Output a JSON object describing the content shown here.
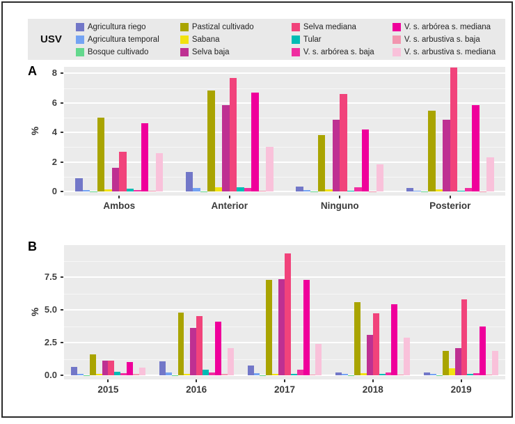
{
  "figure": {
    "panel_a_label": "A",
    "panel_b_label": "B",
    "y_axis_label": "%"
  },
  "legend": {
    "title": "USV",
    "background": "#e9e9e9",
    "columns": 4,
    "rows": 3,
    "order": "column-major"
  },
  "chart_data": [
    {
      "panel": "A",
      "type": "bar",
      "title": "",
      "xlabel": "",
      "ylabel": "%",
      "grid": true,
      "legend_position": "top",
      "categories": [
        "Ambos",
        "Anterior",
        "Ninguno",
        "Posterior"
      ],
      "y_ticks": [
        0,
        2,
        4,
        6,
        8
      ],
      "y_tick_labels": [
        "0",
        "2",
        "4",
        "6",
        "8"
      ],
      "y_minor_ticks": [
        1,
        3,
        5,
        7
      ],
      "ylim": [
        0,
        8.5
      ],
      "series": [
        {
          "name": "Agricultura riego",
          "color": "#7277C8",
          "values": [
            0.9,
            1.3,
            0.35,
            0.25
          ]
        },
        {
          "name": "Agricultura temporal",
          "color": "#74A3F3",
          "values": [
            0.1,
            0.25,
            0.1,
            0.05
          ]
        },
        {
          "name": "Bosque cultivado",
          "color": "#63D88D",
          "values": [
            0.02,
            0.02,
            0.02,
            0.02
          ]
        },
        {
          "name": "Pastizal cultivado",
          "color": "#A9A400",
          "values": [
            5.0,
            6.85,
            3.8,
            5.45
          ]
        },
        {
          "name": "Sabana",
          "color": "#F2E211",
          "values": [
            0.15,
            0.3,
            0.15,
            0.15
          ]
        },
        {
          "name": "Selva baja",
          "color": "#BE3092",
          "values": [
            1.6,
            5.85,
            4.85,
            4.85
          ]
        },
        {
          "name": "Selva mediana",
          "color": "#F1437B",
          "values": [
            2.7,
            7.7,
            6.6,
            8.4
          ]
        },
        {
          "name": "Tular",
          "color": "#00BCB4",
          "values": [
            0.2,
            0.3,
            0.05,
            0.05
          ]
        },
        {
          "name": "V. s. arbórea s. baja",
          "color": "#F02DA0",
          "values": [
            0.1,
            0.25,
            0.3,
            0.25
          ]
        },
        {
          "name": "V. s. arbórea s. mediana",
          "color": "#EF009B",
          "values": [
            4.6,
            6.7,
            4.2,
            5.85
          ]
        },
        {
          "name": "V. s. arbustiva s. baja",
          "color": "#F295AF",
          "values": [
            0.05,
            0.07,
            0.02,
            0.02
          ]
        },
        {
          "name": "V. s. arbustiva s. mediana",
          "color": "#F9C1DA",
          "values": [
            2.6,
            3.0,
            1.85,
            2.3
          ]
        }
      ]
    },
    {
      "panel": "B",
      "type": "bar",
      "title": "",
      "xlabel": "",
      "ylabel": "%",
      "grid": true,
      "legend_position": "top",
      "categories": [
        "2015",
        "2016",
        "2017",
        "2018",
        "2019"
      ],
      "y_ticks": [
        0,
        2.5,
        5,
        7.5
      ],
      "y_tick_labels": [
        "0.0",
        "2.5",
        "5.0",
        "7.5"
      ],
      "y_minor_ticks": [
        1.25,
        3.75,
        6.25,
        8.75
      ],
      "ylim": [
        0,
        9.8
      ],
      "series": [
        {
          "name": "Agricultura riego",
          "color": "#7277C8",
          "values": [
            0.65,
            1.05,
            0.75,
            0.2,
            0.2
          ]
        },
        {
          "name": "Agricultura temporal",
          "color": "#74A3F3",
          "values": [
            0.12,
            0.2,
            0.15,
            0.1,
            0.12
          ]
        },
        {
          "name": "Bosque cultivado",
          "color": "#63D88D",
          "values": [
            0.02,
            0.02,
            0.02,
            0.02,
            0.02
          ]
        },
        {
          "name": "Pastizal cultivado",
          "color": "#A9A400",
          "values": [
            1.6,
            4.8,
            7.3,
            5.6,
            1.85
          ]
        },
        {
          "name": "Sabana",
          "color": "#F2E211",
          "values": [
            0.1,
            0.1,
            0.1,
            0.15,
            0.55
          ]
        },
        {
          "name": "Selva baja",
          "color": "#BE3092",
          "values": [
            1.1,
            3.6,
            7.35,
            3.1,
            2.05
          ]
        },
        {
          "name": "Selva mediana",
          "color": "#F1437B",
          "values": [
            1.1,
            4.5,
            9.3,
            4.75,
            5.8
          ]
        },
        {
          "name": "Tular",
          "color": "#00BCB4",
          "values": [
            0.25,
            0.4,
            0.1,
            0.1,
            0.1
          ]
        },
        {
          "name": "V. s. arbórea s. baja",
          "color": "#F02DA0",
          "values": [
            0.15,
            0.2,
            0.4,
            0.2,
            0.15
          ]
        },
        {
          "name": "V. s. arbórea s. mediana",
          "color": "#EF009B",
          "values": [
            1.0,
            4.1,
            7.3,
            5.45,
            3.7
          ]
        },
        {
          "name": "V. s. arbustiva s. baja",
          "color": "#F295AF",
          "values": [
            0.1,
            0.1,
            0.05,
            0.05,
            0.05
          ]
        },
        {
          "name": "V. s. arbustiva s. mediana",
          "color": "#F9C1DA",
          "values": [
            0.6,
            2.1,
            2.4,
            2.85,
            1.85
          ]
        }
      ]
    }
  ]
}
